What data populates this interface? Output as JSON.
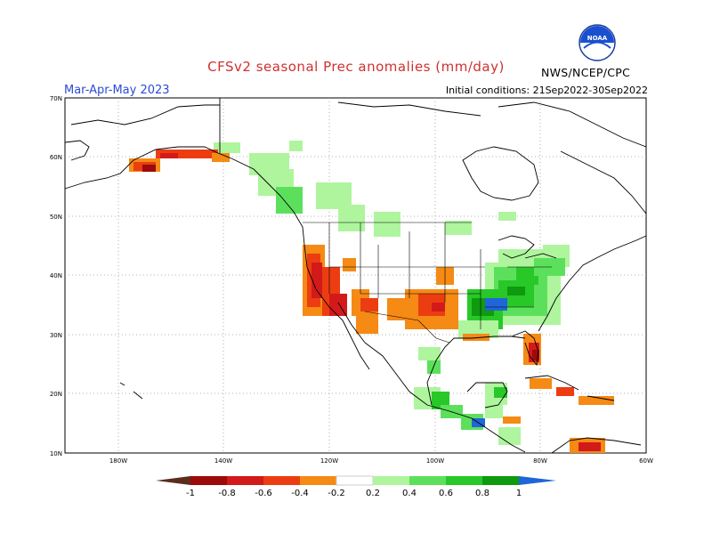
{
  "header": {
    "title": "CFSv2 seasonal Prec anomalies (mm/day)",
    "season": "Mar-Apr-May 2023",
    "initial_conditions": "Initial conditions: 21Sep2022-30Sep2022",
    "organization": "NWS/NCEP/CPC",
    "logo_text": "NOAA"
  },
  "axes": {
    "lat_labels": [
      "70N",
      "60N",
      "50N",
      "40N",
      "30N",
      "20N",
      "10N"
    ],
    "lon_labels": [
      "180W",
      "140W",
      "120W",
      "100W",
      "80W",
      "60W"
    ]
  },
  "colorbar": {
    "labels": [
      "-1",
      "-0.8",
      "-0.6",
      "-0.4",
      "-0.2",
      "0.2",
      "0.4",
      "0.6",
      "0.8",
      "1"
    ],
    "colors": [
      "#5a2d1d",
      "#9c0a0a",
      "#d21a1a",
      "#ec3d12",
      "#f58a15",
      "#ffffff",
      "#aef59e",
      "#5ce05c",
      "#28c828",
      "#0f9a0f",
      "#1f66d8"
    ]
  },
  "colors": {
    "dry_strong": "#9c0a0a",
    "dry_medium": "#d21a1a",
    "dry_light": "#ec3d12",
    "dry_weak": "#f58a15",
    "wet_weak": "#aef59e",
    "wet_light": "#5ce05c",
    "wet_medium": "#28c828",
    "wet_strong": "#0f9a0f",
    "wet_max": "#1f66d8"
  }
}
